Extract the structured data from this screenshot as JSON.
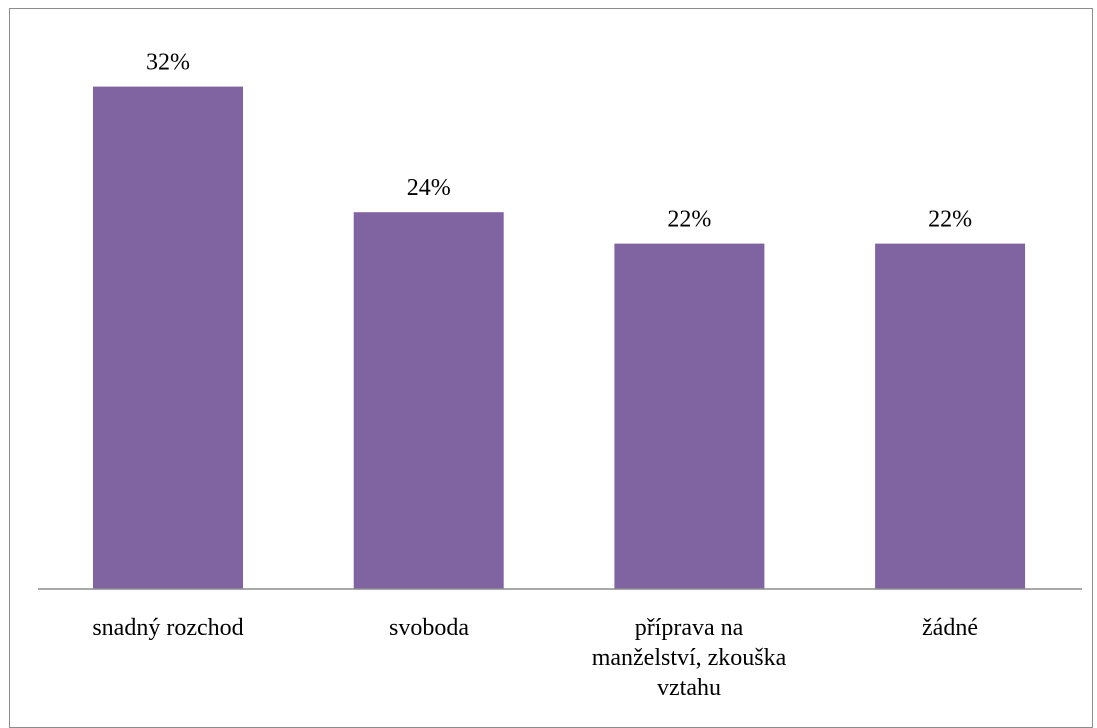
{
  "chart_data": {
    "type": "bar",
    "categories": [
      "snadný rozchod",
      "svoboda",
      "příprava na manželství, zkouška vztahu",
      "žádné"
    ],
    "values": [
      32,
      24,
      22,
      22
    ],
    "data_labels": [
      "32%",
      "24%",
      "22%",
      "22%"
    ],
    "ylim": [
      0,
      35
    ],
    "grid": false,
    "legend": "none",
    "colors": {
      "bar": "#8064A2",
      "axis": "#8c8c8c",
      "text": "#000000"
    }
  }
}
